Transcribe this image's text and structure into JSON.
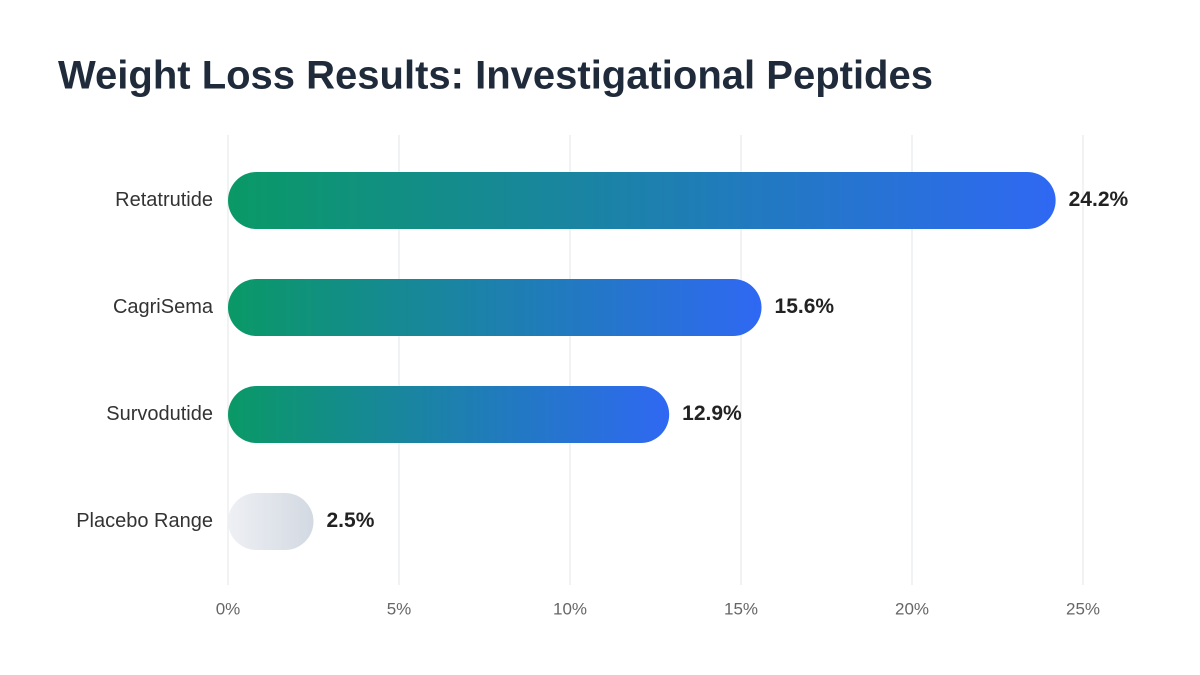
{
  "chart_data": {
    "type": "bar",
    "orientation": "horizontal",
    "title": "Weight Loss Results: Investigational Peptides",
    "categories": [
      "Retatrutide",
      "CagriSema",
      "Survodutide",
      "Placebo Range"
    ],
    "values": [
      24.2,
      15.6,
      12.9,
      2.5
    ],
    "value_labels": [
      "24.2%",
      "15.6%",
      "12.9%",
      "2.5%"
    ],
    "colors": [
      [
        "#0a9966",
        "#2f68f3"
      ],
      [
        "#0a9966",
        "#2f68f3"
      ],
      [
        "#0a9966",
        "#2f68f3"
      ],
      [
        "#eef0f4",
        "#d3d9e2"
      ]
    ],
    "xlim": [
      0,
      25
    ],
    "xticks": [
      {
        "value": 0,
        "label": "0%"
      },
      {
        "value": 5,
        "label": "5%"
      },
      {
        "value": 10,
        "label": "10%"
      },
      {
        "value": 15,
        "label": "15%"
      },
      {
        "value": 20,
        "label": "20%"
      },
      {
        "value": 25,
        "label": "25%"
      }
    ],
    "grid": true
  }
}
